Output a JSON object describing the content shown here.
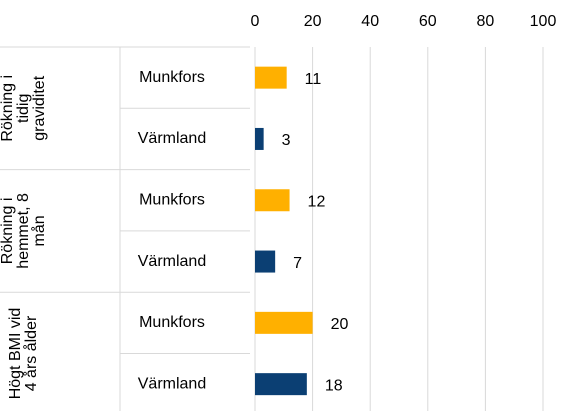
{
  "chart_data": {
    "type": "bar",
    "orientation": "horizontal",
    "categories": [
      "Munkfors",
      "Värmland",
      "Munkfors",
      "Värmland",
      "Munkfors",
      "Värmland"
    ],
    "values": [
      11,
      3,
      12,
      7,
      20,
      18
    ],
    "colors": [
      "#ffb000",
      "#0b3f73",
      "#ffb000",
      "#0b3f73",
      "#ffb000",
      "#0b3f73"
    ],
    "groups": [
      {
        "lines": [
          "Rökning i",
          "tidig",
          "graviditet"
        ]
      },
      {
        "lines": [
          "Rökning i",
          "hemmet, 8",
          "mån"
        ]
      },
      {
        "lines": [
          "Högt BMI vid",
          "4 års ålder"
        ]
      }
    ],
    "xlim": [
      0,
      100
    ],
    "xticks": [
      0,
      20,
      40,
      60,
      80,
      100
    ],
    "grid": true
  }
}
